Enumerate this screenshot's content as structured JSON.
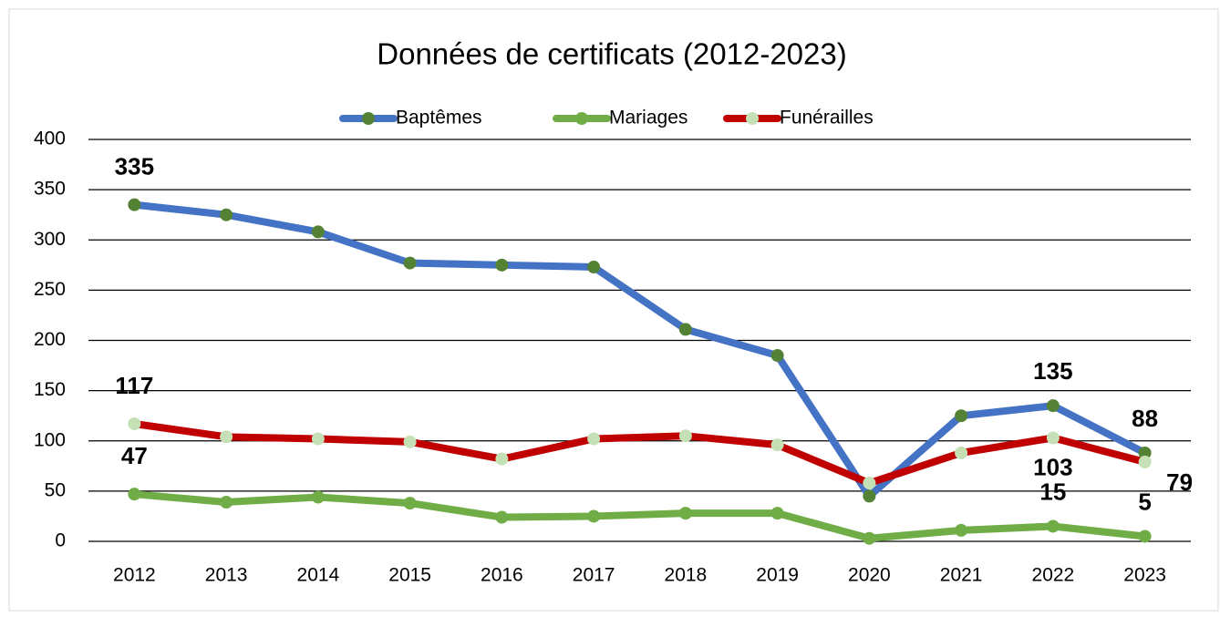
{
  "chart_data": {
    "type": "line",
    "title": "Données de certificats (2012-2023)",
    "categories": [
      "2012",
      "2013",
      "2014",
      "2015",
      "2016",
      "2017",
      "2018",
      "2019",
      "2020",
      "2021",
      "2022",
      "2023"
    ],
    "series": [
      {
        "name": "Baptêmes",
        "color": "#4472c4",
        "marker_color": "#548235",
        "values": [
          335,
          325,
          308,
          277,
          275,
          273,
          211,
          185,
          45,
          125,
          135,
          88
        ],
        "value_labels": [
          "335",
          null,
          null,
          null,
          null,
          null,
          null,
          null,
          null,
          null,
          "135",
          "88"
        ]
      },
      {
        "name": "Mariages",
        "color": "#70ad47",
        "marker_color": "#70ad47",
        "values": [
          47,
          39,
          44,
          38,
          24,
          25,
          28,
          28,
          3,
          11,
          15,
          5
        ],
        "value_labels": [
          "47",
          null,
          null,
          null,
          null,
          null,
          null,
          null,
          null,
          null,
          "15",
          "5"
        ]
      },
      {
        "name": "Funérailles",
        "color": "#c00000",
        "marker_color": "#c5e0b4",
        "values": [
          117,
          104,
          102,
          99,
          82,
          102,
          105,
          96,
          58,
          88,
          103,
          79
        ],
        "value_labels": [
          "117",
          null,
          null,
          null,
          null,
          null,
          null,
          null,
          null,
          null,
          "103",
          "79"
        ]
      }
    ],
    "ylim": [
      0,
      400
    ],
    "yticks": [
      0,
      50,
      100,
      150,
      200,
      250,
      300,
      350,
      400
    ],
    "grid": true,
    "legend": "top"
  }
}
